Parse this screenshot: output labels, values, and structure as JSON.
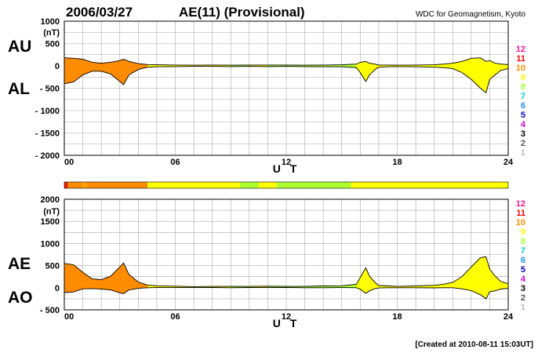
{
  "header": {
    "date": "2006/03/27",
    "title": "AE(11) (Provisional)",
    "source": "WDC for Geomagnetism, Kyoto"
  },
  "footer": {
    "created": "[Created at 2010-08-11 15:03UT]"
  },
  "level_scale": {
    "labels": [
      "12",
      "11",
      "10",
      "9",
      "8",
      "7",
      "6",
      "5",
      "4",
      "3",
      "2",
      "1"
    ],
    "colors": [
      "#ff1493",
      "#ee0000",
      "#ff8c00",
      "#ffff00",
      "#adff2f",
      "#00ced1",
      "#1e90ff",
      "#0000cd",
      "#cc00cc",
      "#000000",
      "#555555",
      "#bbbbbb"
    ]
  },
  "color_bar": {
    "segments": [
      {
        "from": 0,
        "to": 0.2,
        "color": "#ee2200"
      },
      {
        "from": 0.2,
        "to": 1.0,
        "color": "#ff8c00"
      },
      {
        "from": 1.0,
        "to": 1.2,
        "color": "#ffa500"
      },
      {
        "from": 1.2,
        "to": 4.5,
        "color": "#ff8c00"
      },
      {
        "from": 4.5,
        "to": 9.5,
        "color": "#ffff00"
      },
      {
        "from": 9.5,
        "to": 10.5,
        "color": "#adff2f"
      },
      {
        "from": 10.5,
        "to": 11.5,
        "color": "#ffff00"
      },
      {
        "from": 11.5,
        "to": 15.5,
        "color": "#adff2f"
      },
      {
        "from": 15.5,
        "to": 24,
        "color": "#ffff00"
      }
    ]
  },
  "chart_data": [
    {
      "type": "area",
      "panel": "AU/AL",
      "title": "2006/03/27  AE(11) (Provisional)",
      "xlabel": "U T",
      "ylabel": "(nT)",
      "side_labels": [
        "AU",
        "AL"
      ],
      "x_ticks": [
        "00",
        "06",
        "12",
        "18",
        "24"
      ],
      "y_ticks": [
        "1000",
        "500",
        "0",
        "- 500",
        "- 1000",
        "- 1500",
        "- 2000"
      ],
      "xlim": [
        0,
        24
      ],
      "ylim": [
        -2000,
        1000
      ],
      "grid": true,
      "x": [
        0,
        0.5,
        1,
        1.5,
        2,
        2.5,
        3,
        3.2,
        3.5,
        4,
        4.5,
        5,
        6,
        7,
        8,
        9,
        10,
        11,
        12,
        13,
        14,
        15,
        15.8,
        16,
        16.3,
        16.5,
        16.8,
        17,
        17.5,
        18,
        19,
        20,
        20.5,
        21,
        21.5,
        22,
        22.5,
        22.8,
        23,
        23.3,
        23.6,
        24
      ],
      "series": [
        {
          "name": "AU",
          "values": [
            180,
            170,
            150,
            80,
            60,
            80,
            120,
            150,
            100,
            50,
            30,
            25,
            20,
            15,
            20,
            15,
            20,
            20,
            20,
            15,
            20,
            25,
            40,
            80,
            100,
            60,
            40,
            20,
            20,
            15,
            20,
            25,
            40,
            60,
            100,
            170,
            180,
            100,
            120,
            60,
            40,
            30
          ]
        },
        {
          "name": "AL",
          "values": [
            -400,
            -360,
            -200,
            -120,
            -120,
            -180,
            -350,
            -420,
            -200,
            -80,
            -30,
            -20,
            -15,
            -10,
            -10,
            -15,
            -10,
            -15,
            -10,
            -15,
            -20,
            -20,
            -40,
            -150,
            -350,
            -200,
            -80,
            -30,
            -20,
            -15,
            -20,
            -30,
            -40,
            -60,
            -150,
            -300,
            -500,
            -600,
            -300,
            -200,
            -100,
            -60
          ]
        }
      ]
    },
    {
      "type": "area",
      "panel": "AE/AO",
      "xlabel": "U T",
      "ylabel": "(nT)",
      "side_labels": [
        "AE",
        "AO"
      ],
      "x_ticks": [
        "00",
        "06",
        "12",
        "18",
        "24"
      ],
      "y_ticks": [
        "2000",
        "1500",
        "1000",
        "500",
        "0",
        "- 500"
      ],
      "xlim": [
        0,
        24
      ],
      "ylim": [
        -500,
        2000
      ],
      "grid": true,
      "x": [
        0,
        0.5,
        1,
        1.5,
        2,
        2.5,
        3,
        3.2,
        3.5,
        4,
        4.5,
        5,
        6,
        7,
        8,
        9,
        10,
        11,
        12,
        13,
        14,
        15,
        15.8,
        16,
        16.3,
        16.5,
        16.8,
        17,
        17.5,
        18,
        19,
        20,
        20.5,
        21,
        21.5,
        22,
        22.5,
        22.8,
        23,
        23.3,
        23.6,
        24
      ],
      "series": [
        {
          "name": "AE",
          "values": [
            550,
            520,
            350,
            200,
            180,
            260,
            470,
            560,
            300,
            130,
            60,
            45,
            35,
            25,
            30,
            30,
            30,
            35,
            30,
            30,
            40,
            45,
            80,
            230,
            450,
            260,
            120,
            50,
            40,
            30,
            40,
            55,
            80,
            120,
            250,
            470,
            680,
            700,
            420,
            260,
            140,
            90
          ]
        },
        {
          "name": "AO",
          "values": [
            -110,
            -95,
            -25,
            -20,
            -30,
            -50,
            -115,
            -135,
            -50,
            -15,
            0,
            3,
            3,
            3,
            5,
            0,
            5,
            3,
            5,
            0,
            0,
            3,
            0,
            -35,
            -125,
            -70,
            -20,
            -5,
            0,
            0,
            0,
            -3,
            0,
            0,
            -25,
            -65,
            -160,
            -250,
            -90,
            -70,
            -30,
            -15
          ]
        }
      ]
    }
  ]
}
